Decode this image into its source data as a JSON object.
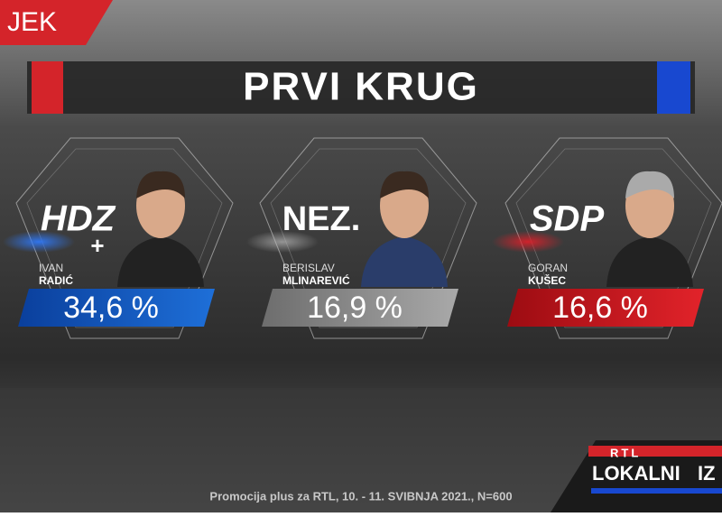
{
  "header": {
    "location_fragment": "JEK",
    "title": "PRVI KRUG"
  },
  "candidates": [
    {
      "party": "HDZ",
      "party_mark": "+",
      "first_name": "IVAN",
      "last_name": "RADIĆ",
      "result": "34,6 %"
    },
    {
      "party": "NEZ.",
      "first_name": "BERISLAV",
      "last_name": "MLINAREVIĆ",
      "result": "16,9 %"
    },
    {
      "party": "SDP",
      "first_name": "GORAN",
      "last_name": "KUŠEC",
      "result": "16,6 %"
    }
  ],
  "footer": {
    "source": "Promocija plus za RTL, 10. - 11. SVIBNJA 2021., N=600"
  },
  "logo": {
    "brand": "RTL",
    "show": "LOKALNI",
    "show_fragment": "IZ"
  }
}
